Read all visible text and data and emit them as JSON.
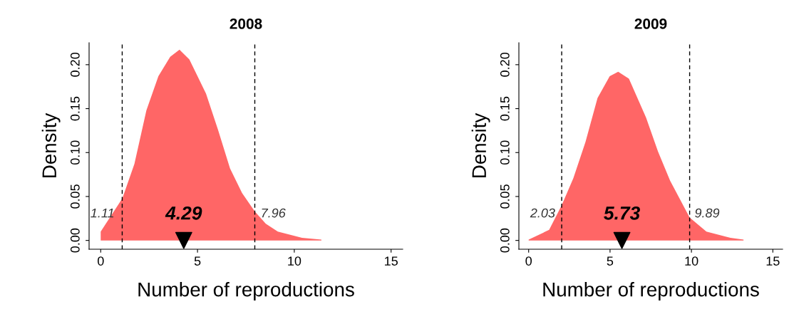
{
  "chart_data": [
    {
      "type": "area",
      "title": "2008",
      "xlabel": "Number of reproductions",
      "ylabel": "Density",
      "xlim": [
        -0.6,
        15.6
      ],
      "xticks": [
        0,
        5,
        10,
        15
      ],
      "ylim": [
        -0.01,
        0.225
      ],
      "yticks": [
        {
          "value": 0,
          "label": "0.00"
        },
        {
          "value": 0.05,
          "label": "0.05"
        },
        {
          "value": 0.1,
          "label": "0.10"
        },
        {
          "value": 0.15,
          "label": "0.15"
        },
        {
          "value": 0.2,
          "label": "0.20"
        }
      ],
      "series": [
        {
          "color": "#ff6666",
          "x": [
            0,
            1.12,
            1.74,
            2.36,
            2.98,
            3.59,
            4.07,
            4.58,
            5.44,
            6.06,
            6.68,
            7.3,
            7.96,
            8.53,
            9.15,
            10.4,
            11.4
          ],
          "values": [
            0.01,
            0.048,
            0.087,
            0.148,
            0.187,
            0.209,
            0.217,
            0.206,
            0.167,
            0.126,
            0.082,
            0.054,
            0.033,
            0.019,
            0.01,
            0.003,
            0.001
          ]
        },
        {
          "type": "scatter",
          "color": "#000000",
          "marker": "triangle",
          "x": [
            4.29
          ],
          "values": [
            0
          ]
        }
      ],
      "ref_lines": [
        {
          "axis": "x",
          "value": 1.11,
          "label": "1.11",
          "color": "#000000",
          "line_style": "dashed"
        },
        {
          "axis": "x",
          "value": 7.96,
          "label": "7.96",
          "color": "#000000",
          "line_style": "dashed"
        }
      ],
      "annotations": [
        {
          "text": "4.29",
          "x": 4.29,
          "y": 0
        }
      ],
      "grid": false,
      "legend": false
    },
    {
      "type": "area",
      "title": "2009",
      "xlabel": "Number of reproductions",
      "ylabel": "Density",
      "xlim": [
        -0.6,
        15.6
      ],
      "xticks": [
        0,
        5,
        10,
        15
      ],
      "ylim": [
        -0.01,
        0.225
      ],
      "yticks": [
        {
          "value": 0,
          "label": "0.00"
        },
        {
          "value": 0.05,
          "label": "0.05"
        },
        {
          "value": 0.1,
          "label": "0.10"
        },
        {
          "value": 0.15,
          "label": "0.15"
        },
        {
          "value": 0.2,
          "label": "0.20"
        }
      ],
      "series": [
        {
          "color": "#ff6666",
          "x": [
            0,
            1.26,
            2.03,
            2.75,
            3.49,
            4.23,
            4.98,
            5.5,
            6.16,
            7.21,
            7.95,
            8.69,
            9.89,
            10.92,
            12.4,
            13.2
          ],
          "values": [
            0.001,
            0.012,
            0.04,
            0.071,
            0.112,
            0.162,
            0.187,
            0.192,
            0.184,
            0.14,
            0.101,
            0.068,
            0.026,
            0.01,
            0.003,
            0.001
          ]
        },
        {
          "type": "scatter",
          "color": "#000000",
          "marker": "triangle",
          "x": [
            5.73
          ],
          "values": [
            0
          ]
        }
      ],
      "ref_lines": [
        {
          "axis": "x",
          "value": 2.03,
          "label": "2.03",
          "color": "#000000",
          "line_style": "dashed"
        },
        {
          "axis": "x",
          "value": 9.89,
          "label": "9.89",
          "color": "#000000",
          "line_style": "dashed"
        }
      ],
      "annotations": [
        {
          "text": "5.73",
          "x": 5.73,
          "y": 0
        }
      ],
      "grid": false,
      "legend": false
    }
  ]
}
